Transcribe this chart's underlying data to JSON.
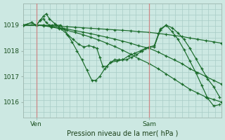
{
  "bg_color": "#cce8e2",
  "grid_color": "#a8ccc6",
  "line_color": "#1a6b2a",
  "xlabel": "Pression niveau de la mer( hPa )",
  "ylim": [
    1015.4,
    1019.85
  ],
  "yticks": [
    1016,
    1017,
    1018,
    1019
  ],
  "xlim": [
    0,
    1
  ],
  "xtick_labels": [
    "Ven",
    "Sam"
  ],
  "xtick_pos": [
    0.065,
    0.635
  ],
  "vline_color": "#8ab8b0",
  "n_vgrid": 30,
  "n_hgrid": 20,
  "series": [
    {
      "x": [
        0.0,
        0.065,
        0.1,
        0.14,
        0.18,
        0.22,
        0.26,
        0.3,
        0.34,
        0.38,
        0.42,
        0.46,
        0.5,
        0.54,
        0.58,
        0.635,
        0.68,
        0.72,
        0.76,
        0.8,
        0.84,
        0.88,
        0.92,
        0.96,
        1.0
      ],
      "y": [
        1019.0,
        1019.0,
        1019.0,
        1018.98,
        1018.96,
        1018.94,
        1018.92,
        1018.9,
        1018.88,
        1018.86,
        1018.84,
        1018.82,
        1018.8,
        1018.78,
        1018.75,
        1018.72,
        1018.68,
        1018.64,
        1018.6,
        1018.56,
        1018.5,
        1018.45,
        1018.4,
        1018.35,
        1018.3
      ]
    },
    {
      "x": [
        0.0,
        0.065,
        0.1,
        0.14,
        0.18,
        0.22,
        0.26,
        0.3,
        0.34,
        0.38,
        0.42,
        0.46,
        0.5,
        0.54,
        0.58,
        0.635,
        0.68,
        0.72,
        0.76,
        0.8,
        0.84,
        0.88,
        0.92,
        0.96,
        1.0
      ],
      "y": [
        1019.0,
        1019.0,
        1019.0,
        1018.95,
        1018.9,
        1018.85,
        1018.79,
        1018.73,
        1018.67,
        1018.6,
        1018.53,
        1018.46,
        1018.38,
        1018.3,
        1018.2,
        1018.1,
        1017.95,
        1017.8,
        1017.65,
        1017.5,
        1017.3,
        1017.15,
        1017.0,
        1016.85,
        1016.7
      ]
    },
    {
      "x": [
        0.0,
        0.065,
        0.1,
        0.14,
        0.18,
        0.22,
        0.26,
        0.3,
        0.34,
        0.38,
        0.42,
        0.46,
        0.5,
        0.54,
        0.58,
        0.635,
        0.68,
        0.72,
        0.76,
        0.8,
        0.84,
        0.88,
        0.92,
        0.96,
        1.0
      ],
      "y": [
        1019.0,
        1019.0,
        1018.98,
        1018.93,
        1018.87,
        1018.8,
        1018.72,
        1018.63,
        1018.53,
        1018.42,
        1018.3,
        1018.17,
        1018.03,
        1017.87,
        1017.7,
        1017.5,
        1017.3,
        1017.1,
        1016.9,
        1016.7,
        1016.5,
        1016.35,
        1016.2,
        1016.1,
        1016.0
      ]
    },
    {
      "x": [
        0.0,
        0.04,
        0.065,
        0.085,
        0.1,
        0.115,
        0.13,
        0.145,
        0.165,
        0.185,
        0.205,
        0.225,
        0.245,
        0.27,
        0.295,
        0.32,
        0.345,
        0.365,
        0.385,
        0.41,
        0.44,
        0.47,
        0.5,
        0.53,
        0.56,
        0.59,
        0.615,
        0.635,
        0.66,
        0.69,
        0.72,
        0.75,
        0.78,
        0.81,
        0.84,
        0.87,
        0.9,
        0.93,
        0.96,
        0.99
      ],
      "y": [
        1019.0,
        1019.1,
        1019.0,
        1019.2,
        1019.25,
        1019.1,
        1019.0,
        1019.0,
        1019.0,
        1019.0,
        1018.85,
        1018.6,
        1018.35,
        1018.0,
        1017.65,
        1017.25,
        1016.85,
        1016.85,
        1017.0,
        1017.3,
        1017.55,
        1017.6,
        1017.65,
        1017.8,
        1017.9,
        1018.0,
        1018.1,
        1018.15,
        1018.2,
        1018.85,
        1019.0,
        1018.9,
        1018.7,
        1018.45,
        1018.1,
        1017.7,
        1017.3,
        1016.9,
        1016.6,
        1016.2
      ]
    },
    {
      "x": [
        0.0,
        0.04,
        0.065,
        0.085,
        0.1,
        0.115,
        0.13,
        0.16,
        0.19,
        0.22,
        0.25,
        0.28,
        0.305,
        0.33,
        0.355,
        0.37,
        0.385,
        0.4,
        0.42,
        0.44,
        0.46,
        0.48,
        0.5,
        0.52,
        0.545,
        0.57,
        0.6,
        0.635,
        0.66,
        0.69,
        0.72,
        0.75,
        0.78,
        0.81,
        0.84,
        0.87,
        0.9,
        0.93,
        0.96,
        0.99
      ],
      "y": [
        1019.0,
        1019.1,
        1019.0,
        1019.2,
        1019.35,
        1019.45,
        1019.25,
        1019.05,
        1018.85,
        1018.65,
        1018.45,
        1018.25,
        1018.15,
        1018.2,
        1018.15,
        1018.1,
        1017.75,
        1017.4,
        1017.4,
        1017.55,
        1017.65,
        1017.65,
        1017.65,
        1017.65,
        1017.75,
        1017.85,
        1018.0,
        1018.15,
        1018.15,
        1018.8,
        1019.0,
        1018.75,
        1018.45,
        1018.05,
        1017.6,
        1017.15,
        1016.65,
        1016.15,
        1015.85,
        1015.9
      ]
    }
  ]
}
